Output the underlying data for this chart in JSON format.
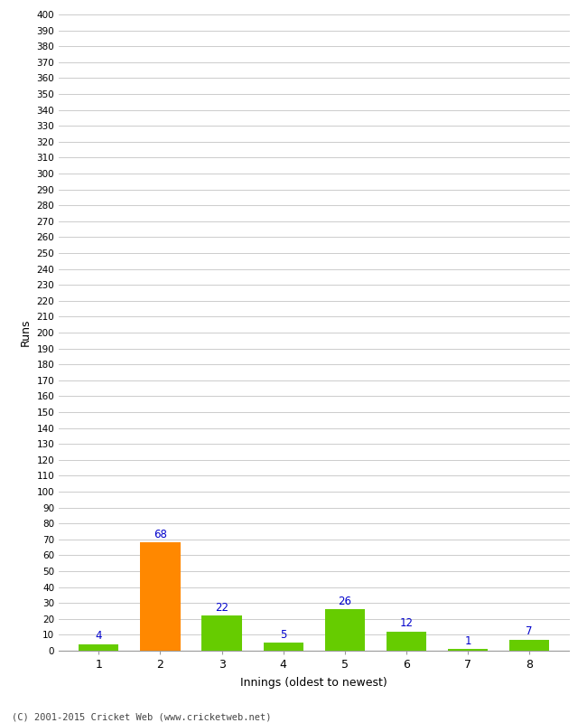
{
  "categories": [
    1,
    2,
    3,
    4,
    5,
    6,
    7,
    8
  ],
  "values": [
    4,
    68,
    22,
    5,
    26,
    12,
    1,
    7
  ],
  "bar_colors": [
    "#66cc00",
    "#ff8800",
    "#66cc00",
    "#66cc00",
    "#66cc00",
    "#66cc00",
    "#66cc00",
    "#66cc00"
  ],
  "xlabel": "Innings (oldest to newest)",
  "ylabel": "Runs",
  "ylim": [
    0,
    400
  ],
  "background_color": "#ffffff",
  "grid_color": "#cccccc",
  "label_color": "#0000cc",
  "footer": "(C) 2001-2015 Cricket Web (www.cricketweb.net)"
}
